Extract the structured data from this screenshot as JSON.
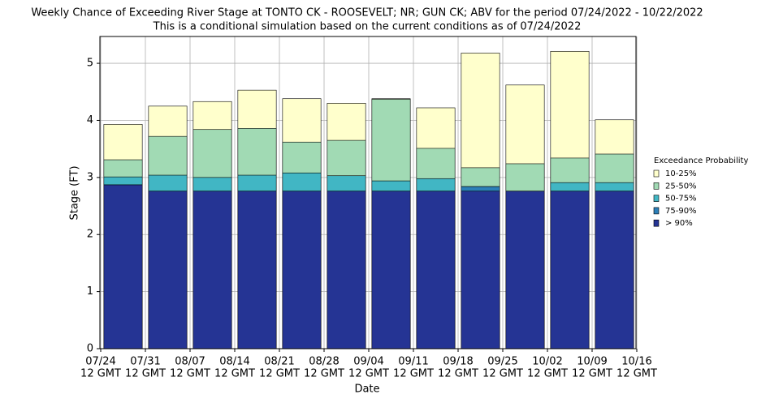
{
  "chart_data": {
    "type": "bar",
    "title": "Weekly Chance of Exceeding River Stage at TONTO CK - ROOSEVELT; NR; GUN CK; ABV for the period 07/24/2022 - 10/22/2022",
    "subtitle": "This is a conditional simulation based on the current conditions as of 07/24/2022",
    "x_label": "Date",
    "y_label": "Stage (FT)",
    "xtick_labels": [
      {
        "date": "07/24",
        "time": "12 GMT"
      },
      {
        "date": "07/31",
        "time": "12 GMT"
      },
      {
        "date": "08/07",
        "time": "12 GMT"
      },
      {
        "date": "08/14",
        "time": "12 GMT"
      },
      {
        "date": "08/21",
        "time": "12 GMT"
      },
      {
        "date": "08/28",
        "time": "12 GMT"
      },
      {
        "date": "09/04",
        "time": "12 GMT"
      },
      {
        "date": "09/11",
        "time": "12 GMT"
      },
      {
        "date": "09/18",
        "time": "12 GMT"
      },
      {
        "date": "09/25",
        "time": "12 GMT"
      },
      {
        "date": "10/02",
        "time": "12 GMT"
      },
      {
        "date": "10/09",
        "time": "12 GMT"
      },
      {
        "date": "10/16",
        "time": "12 GMT"
      }
    ],
    "ylim": [
      0,
      5.47
    ],
    "yticks": [
      0,
      1,
      2,
      3,
      4,
      5
    ],
    "grid": true,
    "legend_title": "Exceedance Probability",
    "legend_position": "right",
    "series": [
      {
        "name": "10-25%",
        "color": "#ffffcc",
        "values": [
          3.93,
          4.25,
          4.33,
          4.53,
          4.38,
          4.3,
          4.38,
          4.22,
          5.18,
          4.62,
          5.21,
          4.01
        ]
      },
      {
        "name": "25-50%",
        "color": "#a1dab4",
        "values": [
          3.31,
          3.72,
          3.84,
          3.86,
          3.62,
          3.65,
          4.37,
          3.51,
          3.17,
          3.24,
          3.34,
          3.41
        ]
      },
      {
        "name": "50-75%",
        "color": "#41b6c4",
        "values": [
          3.01,
          3.04,
          3.0,
          3.04,
          3.08,
          3.03,
          2.94,
          2.98,
          2.84,
          2.76,
          2.91,
          2.91
        ]
      },
      {
        "name": "75-90%",
        "color": "#2c7fb8",
        "values": [
          2.87,
          2.76,
          2.76,
          2.76,
          2.76,
          2.76,
          2.76,
          2.76,
          2.84,
          2.76,
          2.76,
          2.76
        ]
      },
      {
        "name": "> 90%",
        "color": "#253494",
        "values": [
          2.87,
          2.76,
          2.76,
          2.76,
          2.76,
          2.76,
          2.76,
          2.76,
          2.76,
          2.76,
          2.76,
          2.76
        ]
      }
    ]
  }
}
